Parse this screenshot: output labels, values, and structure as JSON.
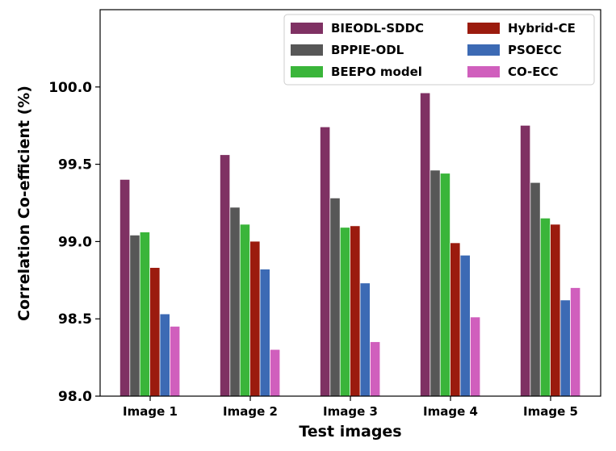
{
  "chart_data": {
    "type": "bar",
    "title": "",
    "xlabel": "Test images",
    "ylabel": "Correlation Co-efficient (%)",
    "ylim": [
      98.0,
      100.5
    ],
    "yticks": [
      "98.0",
      "98.5",
      "99.0",
      "99.5",
      "100.0"
    ],
    "grid": false,
    "legend_position": "top-right",
    "categories": [
      "Image 1",
      "Image 2",
      "Image 3",
      "Image 4",
      "Image 5"
    ],
    "series": [
      {
        "name": "BIEODL-SDDC",
        "color": "#7f3163",
        "values": [
          99.4,
          99.56,
          99.74,
          99.96,
          99.75
        ]
      },
      {
        "name": "BPPIE-ODL",
        "color": "#575757",
        "values": [
          99.04,
          99.22,
          99.28,
          99.46,
          99.38
        ]
      },
      {
        "name": "BEEPO model",
        "color": "#3ab53a",
        "values": [
          99.06,
          99.11,
          99.09,
          99.44,
          99.15
        ]
      },
      {
        "name": "Hybrid-CE",
        "color": "#9b1b0e",
        "values": [
          98.83,
          99.0,
          99.1,
          98.99,
          99.11
        ]
      },
      {
        "name": "PSOECC",
        "color": "#3c6ab4",
        "values": [
          98.53,
          98.82,
          98.73,
          98.91,
          98.62
        ]
      },
      {
        "name": "CO-ECC",
        "color": "#d05fbd",
        "values": [
          98.45,
          98.3,
          98.35,
          98.51,
          98.7
        ]
      }
    ]
  }
}
